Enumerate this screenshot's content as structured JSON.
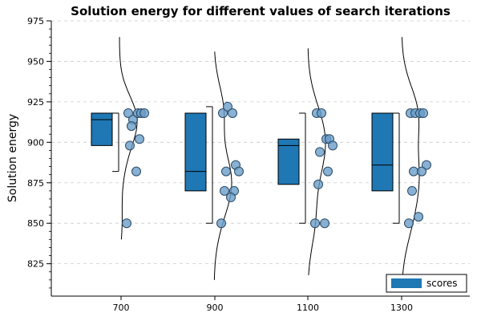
{
  "chart_data": {
    "type": "box",
    "title": "Solution energy for different values of search iterations",
    "xlabel": "",
    "ylabel": "Solution energy",
    "categories": [
      "700",
      "900",
      "1100",
      "1300"
    ],
    "ylim": [
      805,
      975
    ],
    "yticks": [
      825,
      850,
      875,
      900,
      925,
      950,
      975
    ],
    "grid": true,
    "legend": {
      "label": "scores",
      "position": "bottom-right"
    },
    "colors": {
      "box": "#1f77b4",
      "points": "#6a9ec9",
      "grid": "#cccccc"
    },
    "boxes": [
      {
        "category": "700",
        "whisker_low": 882,
        "q1": 898,
        "median": 914,
        "q3": 918,
        "whisker_high": 918
      },
      {
        "category": "900",
        "whisker_low": 850,
        "q1": 870,
        "median": 882,
        "q3": 918,
        "whisker_high": 922
      },
      {
        "category": "1100",
        "whisker_low": 850,
        "q1": 874,
        "median": 898,
        "q3": 902,
        "whisker_high": 918
      },
      {
        "category": "1300",
        "whisker_low": 850,
        "q1": 870,
        "median": 886,
        "q3": 918,
        "whisker_high": 918
      }
    ],
    "points": [
      {
        "category": "700",
        "values": [
          918,
          914,
          918,
          918,
          918,
          910,
          902,
          898,
          882,
          850
        ]
      },
      {
        "category": "900",
        "values": [
          918,
          922,
          918,
          886,
          882,
          882,
          870,
          870,
          866,
          850
        ]
      },
      {
        "category": "1100",
        "values": [
          918,
          918,
          902,
          902,
          898,
          894,
          882,
          874,
          850,
          850
        ]
      },
      {
        "category": "1300",
        "values": [
          918,
          918,
          918,
          918,
          886,
          882,
          882,
          870,
          854,
          850
        ]
      }
    ],
    "density_ranges": [
      {
        "category": "700",
        "range": [
          840,
          965
        ]
      },
      {
        "category": "900",
        "range": [
          815,
          956
        ]
      },
      {
        "category": "1100",
        "range": [
          818,
          958
        ]
      },
      {
        "category": "1300",
        "range": [
          813,
          965
        ]
      }
    ]
  }
}
